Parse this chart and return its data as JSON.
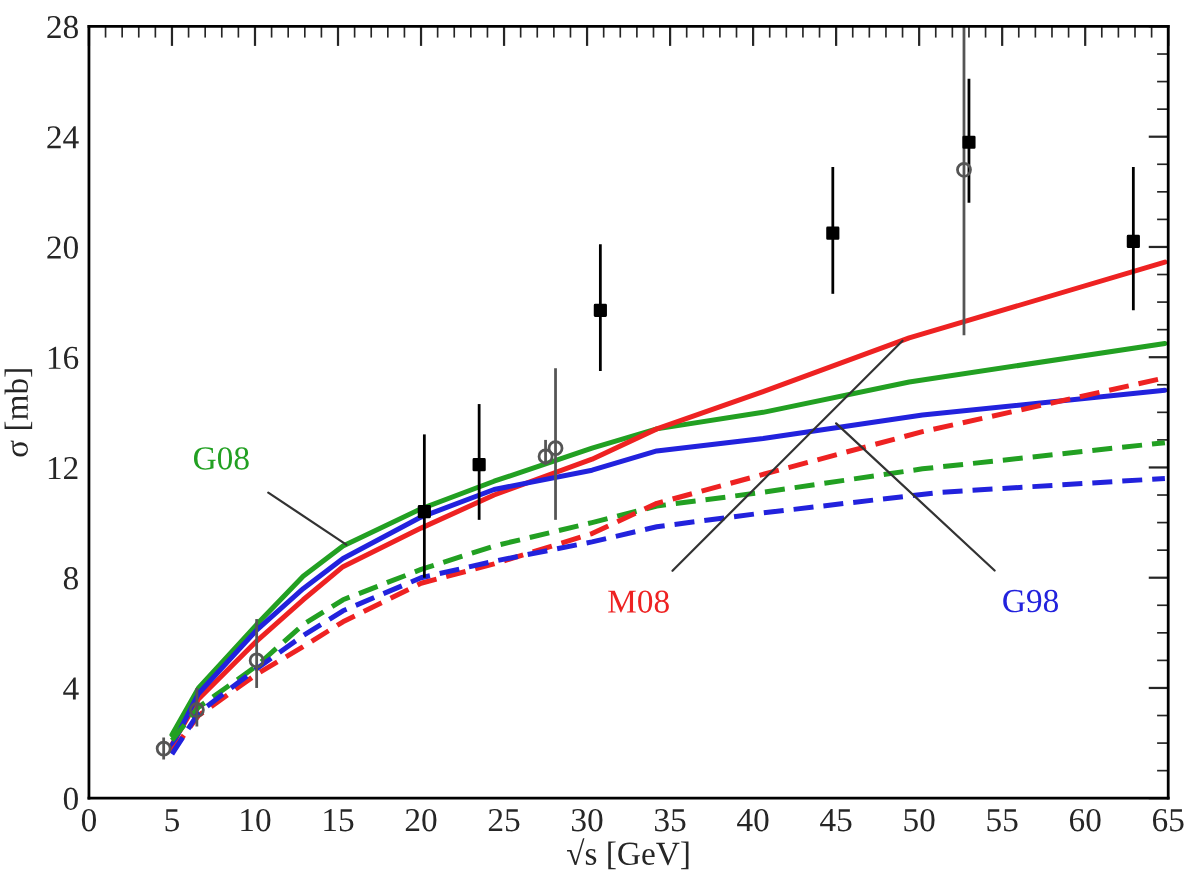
{
  "chart_data": {
    "type": "line",
    "xlabel": "√s [GeV]",
    "ylabel": "σ [mb]",
    "xlim": [
      0,
      65
    ],
    "xticks": [
      0,
      5,
      10,
      15,
      20,
      25,
      30,
      35,
      40,
      45,
      50,
      55,
      60,
      65
    ],
    "ylim": [
      0,
      28
    ],
    "yticks": [
      0,
      4,
      8,
      12,
      16,
      20,
      24,
      28
    ],
    "grid": false,
    "legend": false,
    "series": [
      {
        "line_style": "solid",
        "color": "#22a022",
        "x": [
          5,
          6.6,
          10.1,
          12.9,
          15.3,
          20,
          24.4,
          30.3,
          34.2,
          40.6,
          49.4,
          64.8
        ],
        "values": [
          2.3,
          4.0,
          6.3,
          8.05,
          9.15,
          10.5,
          11.5,
          12.7,
          13.4,
          14.0,
          15.1,
          16.5
        ]
      },
      {
        "line_style": "solid",
        "color": "#ee2222",
        "x": [
          5,
          6.6,
          10.1,
          12.9,
          15.3,
          20,
          24.4,
          30.3,
          34.2,
          40.6,
          49.4,
          64.8
        ],
        "values": [
          1.95,
          3.6,
          5.7,
          7.2,
          8.4,
          9.8,
          11.0,
          12.3,
          13.4,
          14.75,
          16.7,
          19.45
        ]
      },
      {
        "line_style": "solid",
        "color": "#2222dd",
        "x": [
          5,
          6.6,
          10.1,
          12.9,
          15.3,
          20,
          24.4,
          30.3,
          34.2,
          40.6,
          50.2,
          64.8
        ],
        "values": [
          1.9,
          3.8,
          6.1,
          7.6,
          8.7,
          10.2,
          11.2,
          11.9,
          12.6,
          13.05,
          13.9,
          14.8
        ]
      },
      {
        "line_style": "dashed",
        "color": "#22a022",
        "x": [
          5,
          6.6,
          10.1,
          12.9,
          15.3,
          20,
          24.4,
          30.3,
          34.2,
          40.6,
          50.2,
          64.8
        ],
        "values": [
          2.1,
          3.3,
          4.8,
          6.3,
          7.2,
          8.3,
          9.15,
          10.0,
          10.6,
          11.1,
          11.95,
          12.9
        ]
      },
      {
        "line_style": "dashed",
        "color": "#ee2222",
        "x": [
          5,
          6.6,
          10.1,
          12.9,
          15.3,
          20,
          24.4,
          30.3,
          34.2,
          40.3,
          50.2,
          64.8
        ],
        "values": [
          1.7,
          3.0,
          4.5,
          5.5,
          6.4,
          7.8,
          8.5,
          9.6,
          10.7,
          11.7,
          13.3,
          15.25
        ]
      },
      {
        "line_style": "dashed",
        "color": "#2222dd",
        "x": [
          5,
          6.6,
          10.1,
          12.9,
          15.3,
          20,
          24.4,
          30.3,
          34.2,
          40.6,
          51.3,
          64.8
        ],
        "values": [
          1.6,
          3.1,
          4.7,
          5.9,
          6.8,
          8.0,
          8.6,
          9.3,
          9.85,
          10.35,
          11.1,
          11.6
        ]
      },
      {
        "type": "scatter",
        "marker": "square",
        "color": "#000000",
        "x": [
          20.2,
          23.5,
          30.8,
          44.8,
          53.0,
          62.9
        ],
        "values": [
          10.4,
          12.1,
          17.7,
          20.5,
          23.8,
          20.2
        ],
        "errors": [
          [
            8.0,
            13.2
          ],
          [
            10.1,
            14.3
          ],
          [
            15.5,
            20.1
          ],
          [
            18.3,
            22.9
          ],
          [
            21.6,
            26.1
          ],
          [
            17.7,
            22.9
          ]
        ]
      },
      {
        "type": "scatter",
        "marker": "circle",
        "color": "#555555",
        "x": [
          4.5,
          6.5,
          10.1,
          27.5,
          28.1,
          52.7
        ],
        "values": [
          1.8,
          3.2,
          5.0,
          12.4,
          12.7,
          22.8
        ],
        "errors": [
          0.4,
          [
            2.6,
            4.0
          ],
          [
            4.0,
            6.5
          ],
          [
            12.1,
            13.0
          ],
          [
            10.1,
            15.6
          ],
          [
            16.8,
            28
          ]
        ]
      }
    ],
    "annotations": [
      {
        "text": "G08",
        "x": 15.5,
        "y": 9.2
      },
      {
        "text": "M08",
        "x": 49.0,
        "y": 16.6
      },
      {
        "text": "G98",
        "x": 45.0,
        "y": 13.6
      }
    ]
  }
}
